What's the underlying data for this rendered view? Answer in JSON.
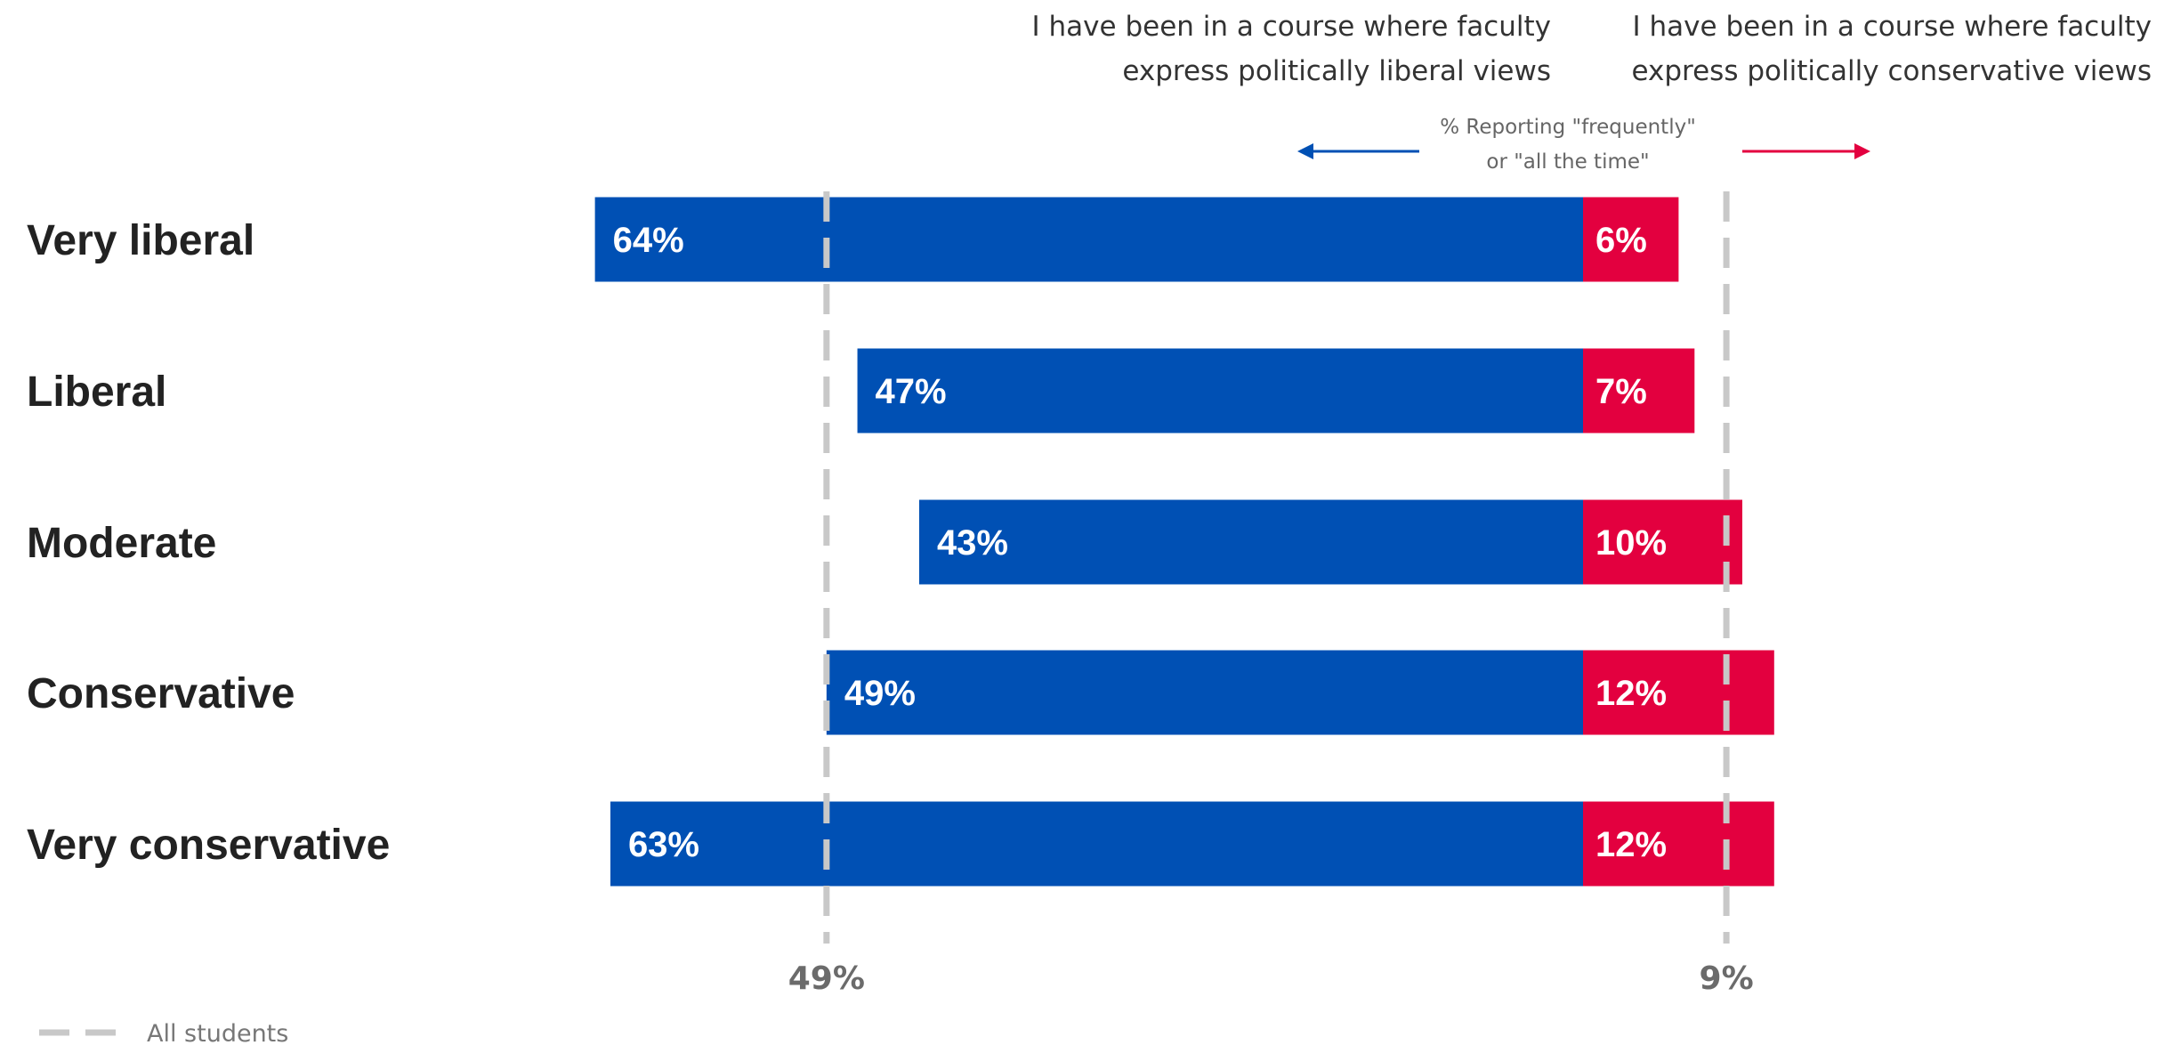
{
  "chart_data": {
    "type": "bar",
    "orientation": "diverging-horizontal",
    "categories": [
      "Very liberal",
      "Liberal",
      "Moderate",
      "Conservative",
      "Very conservative"
    ],
    "series": [
      {
        "name": "I have been in a course where faculty express politically liberal views",
        "values": [
          64,
          47,
          43,
          49,
          63
        ],
        "labels": [
          "64%",
          "47%",
          "43%",
          "49%",
          "63%"
        ],
        "color": "#0050b4",
        "direction": "left"
      },
      {
        "name": "I have been in a course where faculty express politically conservative views",
        "values": [
          6,
          7,
          10,
          12,
          12
        ],
        "labels": [
          "6%",
          "7%",
          "10%",
          "12%",
          "12%"
        ],
        "color": "#e3003f",
        "direction": "right"
      }
    ],
    "series_headers": {
      "left": [
        "I have been in a course where faculty",
        "express politically liberal views"
      ],
      "right": [
        "I have been in a course where faculty",
        "express politically conservative views"
      ]
    },
    "note": [
      "% Reporting \"frequently\"",
      "or \"all the time\""
    ],
    "reference": {
      "name": "All students",
      "left_value": 49,
      "left_label": "49%",
      "right_value": 9,
      "right_label": "9%",
      "color": "#c8c8c8"
    },
    "unit": "%"
  }
}
